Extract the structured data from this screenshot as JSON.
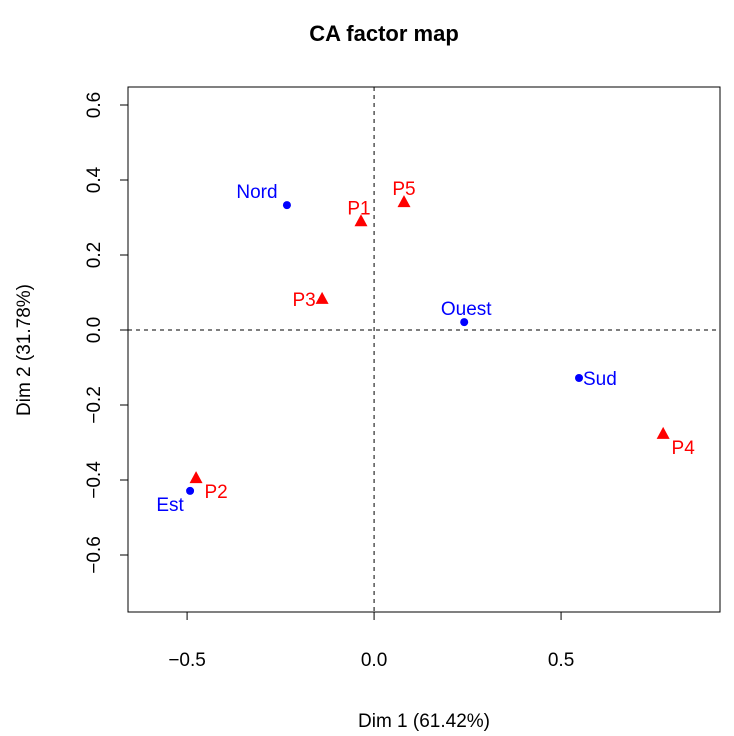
{
  "chart_data": {
    "type": "scatter",
    "title": "CA factor map",
    "x_label": "Dim 1 (61.42%)",
    "y_label": "Dim 2 (31.78%)",
    "xlim": [
      -0.658,
      0.925
    ],
    "ylim": [
      -0.752,
      0.648
    ],
    "xticks": [
      {
        "value": -0.5,
        "label": "−0.5"
      },
      {
        "value": 0,
        "label": "0.0"
      },
      {
        "value": 0.5,
        "label": "0.5"
      }
    ],
    "yticks": [
      {
        "value": -0.6,
        "label": "−0.6"
      },
      {
        "value": -0.4,
        "label": "−0.4"
      },
      {
        "value": -0.2,
        "label": "−0.2"
      },
      {
        "value": 0,
        "label": "0.0"
      },
      0.2,
      0.4,
      0.6
    ],
    "hline": 0,
    "vline": 0,
    "series": [
      {
        "color": "#0000ff",
        "marker": "circle",
        "labels": [
          "Nord",
          "Ouest",
          "Sud",
          "Est"
        ],
        "x": [
          -0.233,
          0.241,
          0.548,
          -0.492
        ],
        "values": [
          0.333,
          0.021,
          -0.128,
          -0.429
        ]
      },
      {
        "color": "#ff0000",
        "marker": "triangle",
        "labels": [
          "P1",
          "P5",
          "P3",
          "P4",
          "P2"
        ],
        "x": [
          -0.035,
          0.08,
          -0.139,
          0.773,
          -0.476
        ],
        "values": [
          0.29,
          0.341,
          0.083,
          -0.277,
          -0.395
        ]
      }
    ]
  }
}
